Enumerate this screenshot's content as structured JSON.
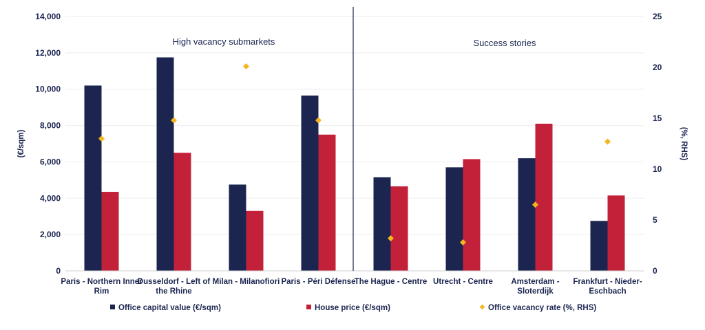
{
  "chart_data": {
    "type": "bar",
    "categories": [
      [
        "Paris - Northern Inner",
        "Rim"
      ],
      [
        "Dusseldorf - Left of",
        "the Rhine"
      ],
      [
        "Milan - Milanofiori"
      ],
      [
        "Paris - Péri Défense"
      ],
      [
        "The Hague - Centre"
      ],
      [
        "Utrecht - Centre"
      ],
      [
        "Amsterdam -",
        "Sloterdijk"
      ],
      [
        "Frankfurt - Nieder-",
        "Eschbach"
      ]
    ],
    "series": [
      {
        "name": "Office capital value (€/sqm)",
        "kind": "bar",
        "axis": "left",
        "color": "#1b2550",
        "values": [
          10200,
          11750,
          4750,
          9650,
          5150,
          5700,
          6200,
          2750
        ]
      },
      {
        "name": "House price (€/sqm)",
        "kind": "bar",
        "axis": "left",
        "color": "#c3213a",
        "values": [
          4350,
          6500,
          3300,
          7500,
          4650,
          6150,
          8100,
          4150
        ]
      },
      {
        "name": "Office vacancy rate (%, RHS)",
        "kind": "marker",
        "axis": "right",
        "color": "#f3b61f",
        "values": [
          13.0,
          14.8,
          20.1,
          14.8,
          3.2,
          2.8,
          6.5,
          12.7
        ]
      }
    ],
    "ylabel": "(€/sqm)",
    "y2label": "(%, RHS)",
    "ylim": [
      0,
      14000
    ],
    "y2lim": [
      0,
      25
    ],
    "yticks": [
      "0",
      "2,000",
      "4,000",
      "6,000",
      "8,000",
      "10,000",
      "12,000",
      "14,000"
    ],
    "y2ticks": [
      "0",
      "5",
      "10",
      "15",
      "20",
      "25"
    ],
    "group_labels": [
      "High vacancy submarkets",
      "Success stories"
    ],
    "legend_position": "bottom",
    "grid": true
  }
}
